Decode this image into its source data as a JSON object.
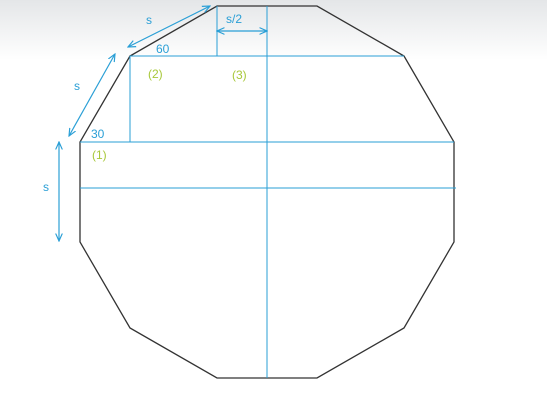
{
  "labels": {
    "side_top": "s",
    "side_left_upper": "s",
    "side_left_mid": "s",
    "half_side": "s/2",
    "angle_60": "60",
    "angle_30": "30",
    "region_1": "(1)",
    "region_2": "(2)",
    "region_3": "(3)"
  },
  "colors": {
    "outline": "#333333",
    "construction": "#2a9fd6",
    "region_label": "#a8c83a",
    "background_top": "#e8eaec"
  }
}
